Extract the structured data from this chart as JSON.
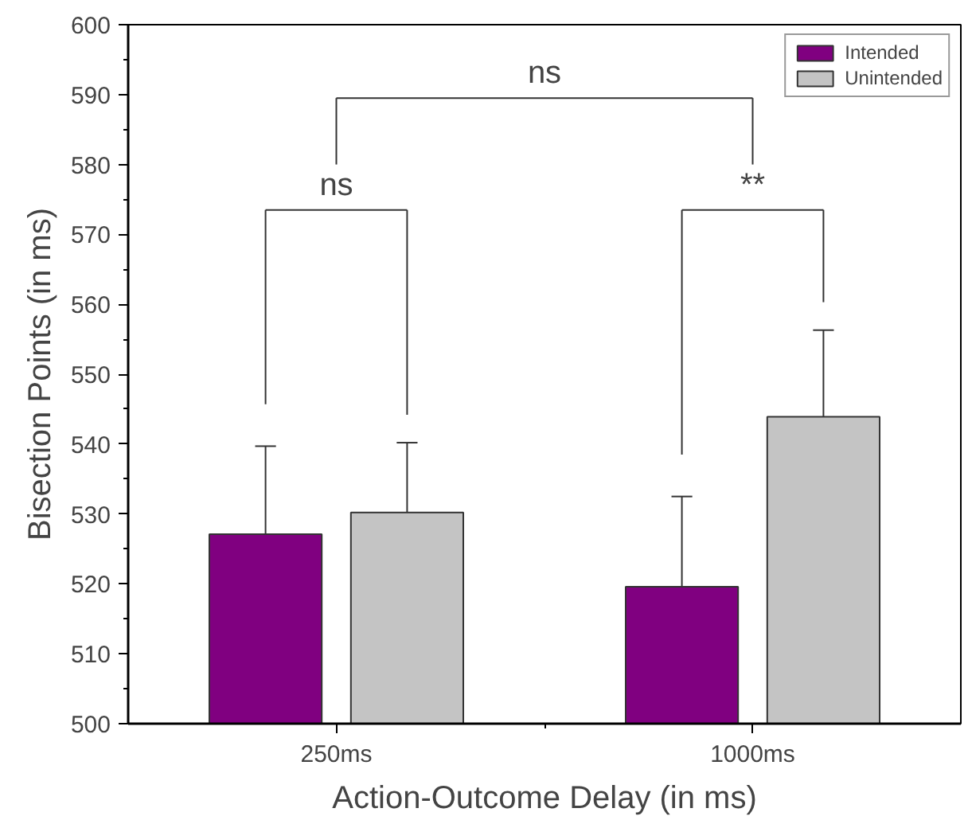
{
  "chart_data": {
    "type": "bar",
    "xlabel": "Action-Outcome Delay (in ms)",
    "ylabel": "Bisection Points (in ms)",
    "categories": [
      "250ms",
      "1000ms"
    ],
    "series": [
      {
        "name": "Intended",
        "color": "#800080",
        "values": [
          527.1,
          519.6
        ],
        "errors": [
          [
            527.1,
            539.7
          ],
          [
            519.6,
            532.5
          ]
        ]
      },
      {
        "name": "Unintended",
        "color": "#c4c4c4",
        "values": [
          530.2,
          543.9
        ],
        "errors": [
          [
            530.2,
            540.2
          ],
          [
            543.9,
            556.3
          ]
        ]
      }
    ],
    "ylim": [
      500,
      600
    ],
    "yticks": [
      500,
      510,
      520,
      530,
      540,
      550,
      560,
      570,
      580,
      590,
      600
    ],
    "grid": false,
    "legend": "top right",
    "annotations": [
      "ns",
      "**",
      "ns"
    ]
  }
}
